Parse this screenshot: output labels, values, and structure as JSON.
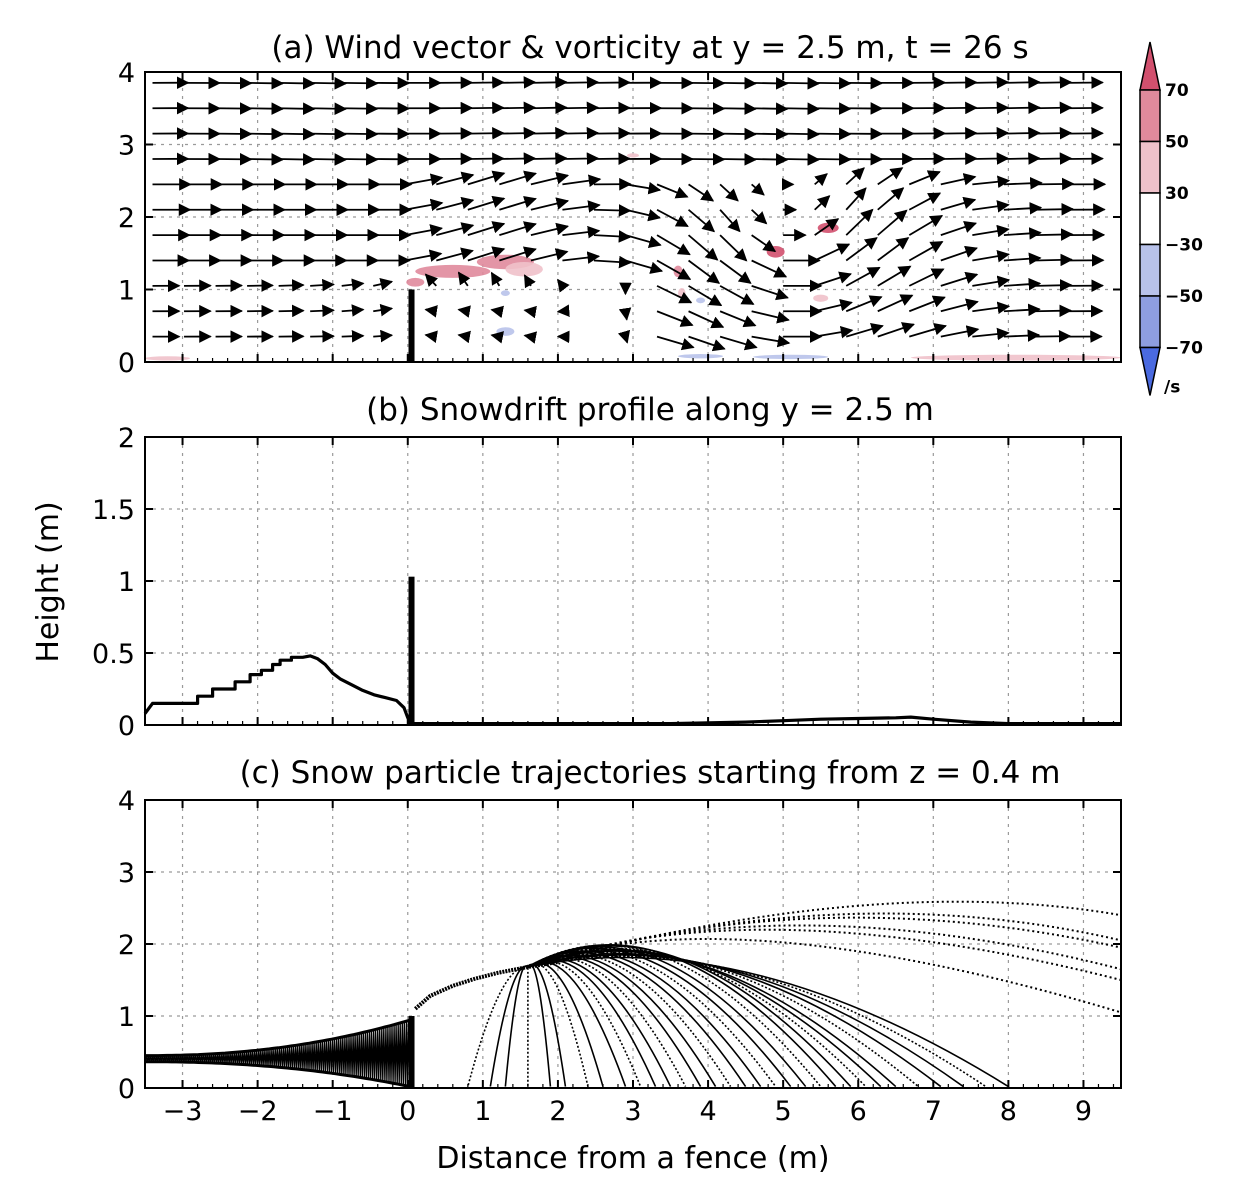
{
  "chart_data": [
    {
      "type": "vector",
      "title": "(a) Wind vector & vorticity at y = 2.5 m, t = 26 s",
      "xlim": [
        -3.5,
        9.5
      ],
      "ylim": [
        0,
        4
      ],
      "x_ticks": [
        -3,
        -2,
        -1,
        0,
        1,
        2,
        3,
        4,
        5,
        6,
        7,
        8,
        9
      ],
      "y_ticks": [
        "0",
        "1",
        "2",
        "3",
        "4"
      ],
      "y_tick_values": [
        0,
        1,
        2,
        3,
        4
      ],
      "grid": true,
      "fence": {
        "x": 0.05,
        "height": 1.0
      },
      "colorbar": {
        "labels": [
          "70",
          "50",
          "30",
          "−30",
          "−50",
          "−70"
        ],
        "values": [
          70,
          50,
          30,
          -30,
          -50,
          -70
        ],
        "unit": "/s",
        "colors": [
          "#d2506e",
          "#e08a9c",
          "#efc1ca",
          "#ffffff",
          "#b8c2ea",
          "#8e9ee0",
          "#4a6ae0"
        ],
        "extend": "both"
      },
      "vorticity_patches": [
        {
          "x": 0.1,
          "y": 1.1,
          "rx": 0.12,
          "ry": 0.06,
          "level": 50
        },
        {
          "x": 0.6,
          "y": 1.25,
          "rx": 0.5,
          "ry": 0.09,
          "level": 50
        },
        {
          "x": 1.3,
          "y": 1.38,
          "rx": 0.38,
          "ry": 0.1,
          "level": 50
        },
        {
          "x": 1.55,
          "y": 1.28,
          "rx": 0.25,
          "ry": 0.1,
          "level": 30
        },
        {
          "x": 4.9,
          "y": 1.52,
          "rx": 0.12,
          "ry": 0.08,
          "level": 70
        },
        {
          "x": 5.6,
          "y": 1.85,
          "rx": 0.14,
          "ry": 0.07,
          "level": 70
        },
        {
          "x": 5.5,
          "y": 0.88,
          "rx": 0.1,
          "ry": 0.05,
          "level": 30
        },
        {
          "x": 3.6,
          "y": 1.25,
          "rx": 0.06,
          "ry": 0.08,
          "level": 50
        },
        {
          "x": 3.65,
          "y": 0.95,
          "rx": 0.05,
          "ry": 0.07,
          "level": 30
        },
        {
          "x": 3.0,
          "y": 2.85,
          "rx": 0.08,
          "ry": 0.03,
          "level": 30
        },
        {
          "x": 1.3,
          "y": 0.95,
          "rx": 0.06,
          "ry": 0.04,
          "level": -30
        },
        {
          "x": 1.3,
          "y": 0.42,
          "rx": 0.12,
          "ry": 0.06,
          "level": -30
        },
        {
          "x": 3.9,
          "y": 0.85,
          "rx": 0.06,
          "ry": 0.04,
          "level": -30
        },
        {
          "x": 3.9,
          "y": 0.08,
          "rx": 0.3,
          "ry": 0.03,
          "level": -30
        },
        {
          "x": 5.1,
          "y": 0.07,
          "rx": 0.5,
          "ry": 0.03,
          "level": -30
        },
        {
          "x": -3.2,
          "y": 0.05,
          "rx": 0.3,
          "ry": 0.03,
          "level": 30
        },
        {
          "x": 8.1,
          "y": 0.06,
          "rx": 1.4,
          "ry": 0.04,
          "level": 30
        }
      ]
    },
    {
      "type": "line",
      "title": "(b) Snowdrift profile along y = 2.5 m",
      "ylabel": "Height (m)",
      "xlim": [
        -3.5,
        9.5
      ],
      "ylim": [
        0,
        2
      ],
      "x_ticks": [
        -3,
        -2,
        -1,
        0,
        1,
        2,
        3,
        4,
        5,
        6,
        7,
        8,
        9
      ],
      "y_ticks": [
        "0",
        "0.5",
        "1",
        "1.5",
        "2"
      ],
      "y_tick_values": [
        0,
        0.5,
        1,
        1.5,
        2
      ],
      "grid": true,
      "fence": {
        "x": 0.05,
        "height": 1.03
      },
      "series": [
        {
          "x": [
            -3.5,
            -3.4,
            -3.35,
            -2.8,
            -2.8,
            -2.6,
            -2.6,
            -2.3,
            -2.3,
            -2.1,
            -2.1,
            -1.95,
            -1.95,
            -1.8,
            -1.8,
            -1.7,
            -1.7,
            -1.55,
            -1.55,
            -1.4,
            -1.3,
            -1.2,
            -1.1,
            -1.0,
            -0.9,
            -0.75,
            -0.6,
            -0.45,
            -0.3,
            -0.15,
            -0.05,
            0.0,
            0.05,
            0.5,
            1.5,
            2.5,
            3.5,
            4.5,
            5.0,
            5.5,
            6.0,
            6.5,
            6.7,
            7.0,
            7.5,
            8.0,
            9.5
          ],
          "y": [
            0.08,
            0.15,
            0.15,
            0.15,
            0.2,
            0.2,
            0.25,
            0.25,
            0.3,
            0.3,
            0.35,
            0.35,
            0.38,
            0.38,
            0.42,
            0.42,
            0.45,
            0.45,
            0.47,
            0.47,
            0.48,
            0.46,
            0.42,
            0.36,
            0.32,
            0.28,
            0.24,
            0.21,
            0.19,
            0.17,
            0.12,
            0.05,
            0.01,
            0.01,
            0.01,
            0.01,
            0.01,
            0.02,
            0.03,
            0.04,
            0.045,
            0.05,
            0.055,
            0.04,
            0.02,
            0.01,
            0.01
          ]
        }
      ]
    },
    {
      "type": "line",
      "title": "(c) Snow particle trajectories starting from z = 0.4 m",
      "xlabel": "Distance from a fence (m)",
      "xlim": [
        -3.5,
        9.5
      ],
      "ylim": [
        0,
        4
      ],
      "x_ticks": [
        -3,
        -2,
        -1,
        0,
        1,
        2,
        3,
        4,
        5,
        6,
        7,
        8,
        9
      ],
      "y_ticks": [
        "0",
        "1",
        "2",
        "3",
        "4"
      ],
      "y_tick_values": [
        0,
        1,
        2,
        3,
        4
      ],
      "grid": true,
      "fence": {
        "x": 0.05,
        "height": 1.0
      },
      "start_height": 0.4,
      "mean_lift_path": {
        "x": [
          0.1,
          0.3,
          0.6,
          0.9,
          1.2,
          1.6,
          2.0
        ],
        "y": [
          1.1,
          1.28,
          1.42,
          1.52,
          1.6,
          1.68,
          1.75
        ]
      },
      "trajectory_landings": {
        "x": [
          0.8,
          1.1,
          1.3,
          1.6,
          1.9,
          2.1,
          2.4,
          2.6,
          2.9,
          3.1,
          3.3,
          3.5,
          3.7,
          3.9,
          4.1,
          4.3,
          4.5,
          4.7,
          4.9,
          5.1,
          5.3,
          5.5,
          5.7,
          5.9,
          6.1,
          6.3,
          6.5,
          6.8,
          7.1,
          7.4,
          7.7,
          8.0
        ],
        "apex": [
          1.5,
          1.55,
          1.6,
          1.65,
          1.7,
          1.72,
          1.75,
          1.8,
          1.85,
          1.9,
          1.95,
          2.0,
          2.05,
          2.1,
          2.15,
          2.2,
          2.25,
          2.3,
          2.35,
          2.4,
          2.45,
          2.5,
          2.52,
          2.48,
          2.4,
          2.35,
          2.3,
          2.25,
          2.2,
          2.15,
          2.1,
          2.05
        ]
      },
      "exiting_trajectories": {
        "y_at_right_edge": [
          2.4,
          2.05,
          1.95,
          1.65,
          1.5,
          1.05
        ],
        "apex": [
          2.6,
          2.55,
          2.5,
          2.45,
          2.4,
          2.3
        ],
        "apex_x": [
          6.2,
          5.8,
          5.4,
          5.0,
          4.6,
          4.2
        ]
      }
    }
  ]
}
